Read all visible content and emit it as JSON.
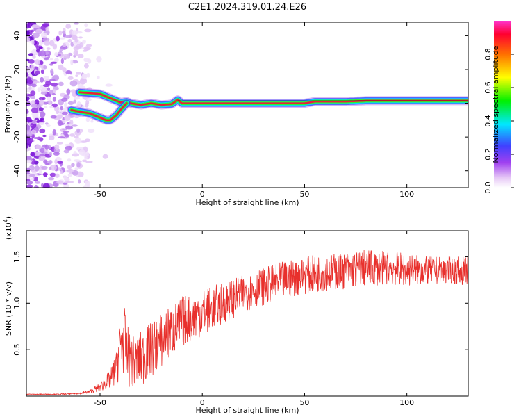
{
  "title": "C2E1.2024.319.01.24.E26",
  "colors": {
    "snr_line": "#e8302c",
    "ridge_core": "#e81e3c",
    "frame": "#000000"
  },
  "chart_data": [
    {
      "type": "heatmap",
      "xlabel": "Height of straight line (km)",
      "ylabel": "Frequency (Hz)",
      "xlim": [
        -86,
        130
      ],
      "ylim": [
        -50,
        48
      ],
      "x_ticks": [
        -50,
        0,
        50,
        100
      ],
      "x_tick_labels": [
        "-50",
        "0",
        "50",
        "100"
      ],
      "y_ticks": [
        -40,
        -20,
        0,
        20,
        40
      ],
      "y_tick_labels": [
        "-40",
        "-20",
        "0",
        "20",
        "40"
      ],
      "ridge_upper": {
        "x": [
          -60,
          -55,
          -50,
          -45,
          -40,
          -37,
          -35,
          -30,
          -25,
          -20,
          -15,
          -12,
          -10,
          -5,
          0,
          10,
          20,
          30,
          40,
          50,
          55,
          60,
          70,
          80,
          90,
          100,
          110,
          120,
          130
        ],
        "y": [
          6.5,
          6,
          5.5,
          3,
          0.5,
          1,
          0,
          -1,
          0,
          -1,
          -0.5,
          2,
          0,
          0,
          0,
          0,
          0,
          0,
          0,
          0,
          1,
          1,
          1,
          1.5,
          1.5,
          1.5,
          1.5,
          1.5,
          1.5
        ]
      },
      "ridge_lower": {
        "x": [
          -64,
          -60,
          -55,
          -50,
          -47,
          -45,
          -42,
          -40,
          -37
        ],
        "y": [
          -4,
          -5,
          -6,
          -8.5,
          -10,
          -10,
          -7,
          -4,
          0
        ]
      },
      "colorbar": {
        "label": "Normalized spectral amplitude",
        "range": [
          0,
          1
        ],
        "ticks": [
          0.0,
          0.2,
          0.4,
          0.6,
          0.8
        ],
        "tick_labels": [
          "0.0",
          "0.2",
          "0.4",
          "0.6",
          "0.8"
        ]
      }
    },
    {
      "type": "line",
      "xlabel": "Height of straight line (km)",
      "ylabel": "SNR (10 * v/v)",
      "y_multiplier_label": "(x10",
      "y_multiplier_exponent": "4",
      "y_multiplier_close": ")",
      "xlim": [
        -86,
        130
      ],
      "ylim": [
        0,
        1.78
      ],
      "x_ticks": [
        -50,
        0,
        50,
        100
      ],
      "x_tick_labels": [
        "-50",
        "0",
        "50",
        "100"
      ],
      "y_ticks": [
        0.5,
        1.0,
        1.5
      ],
      "y_tick_labels": [
        "0.5",
        "1.0",
        "1.5"
      ],
      "series": [
        {
          "trend_x": [
            -86,
            -70,
            -60,
            -55,
            -50,
            -45,
            -42,
            -40,
            -38,
            -36,
            -33,
            -30,
            -25,
            -20,
            -15,
            -10,
            -5,
            0,
            10,
            20,
            30,
            40,
            50,
            60,
            70,
            80,
            90,
            100,
            110,
            120,
            130
          ],
          "trend_y": [
            0.02,
            0.02,
            0.03,
            0.05,
            0.1,
            0.18,
            0.3,
            0.55,
            0.6,
            0.4,
            0.35,
            0.4,
            0.5,
            0.6,
            0.7,
            0.8,
            0.85,
            0.9,
            1.0,
            1.1,
            1.18,
            1.25,
            1.3,
            1.33,
            1.35,
            1.38,
            1.38,
            1.36,
            1.35,
            1.35,
            1.35
          ],
          "amp_y": [
            0.005,
            0.005,
            0.01,
            0.02,
            0.05,
            0.1,
            0.18,
            0.35,
            0.35,
            0.3,
            0.28,
            0.3,
            0.3,
            0.3,
            0.28,
            0.28,
            0.25,
            0.25,
            0.22,
            0.2,
            0.2,
            0.2,
            0.2,
            0.2,
            0.2,
            0.2,
            0.18,
            0.18,
            0.15,
            0.15,
            0.15
          ]
        }
      ]
    }
  ]
}
